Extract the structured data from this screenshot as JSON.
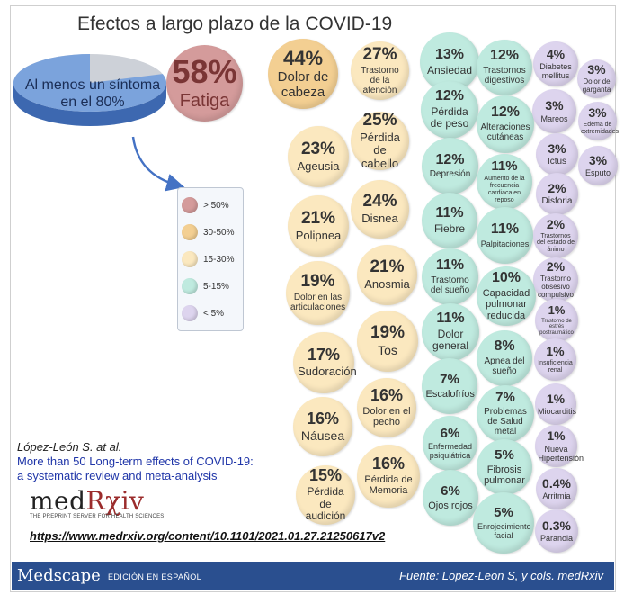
{
  "title": "Efectos a largo plazo de la COVID-19",
  "pie": {
    "label": "Al menos un síntoma en el 80%",
    "value": 80
  },
  "legend": [
    {
      "label": "> 50%",
      "color": "#d49b9b"
    },
    {
      "label": "30-50%",
      "color": "#f3cf92"
    },
    {
      "label": "15-30%",
      "color": "#fbe8bf"
    },
    {
      "label": "5-15%",
      "color": "#bfeadf"
    },
    {
      "label": "< 5%",
      "color": "#ddd4ee"
    }
  ],
  "chart_data": {
    "type": "bubble",
    "title": "Efectos a largo plazo de la COVID-19",
    "pie_value": 80,
    "bins": [
      {
        "label": "> 50%",
        "min": 50,
        "color": "#d49b9b"
      },
      {
        "label": "30-50%",
        "min": 30,
        "color": "#f3cf92"
      },
      {
        "label": "15-30%",
        "min": 15,
        "color": "#fbe8bf"
      },
      {
        "label": "5-15%",
        "min": 5,
        "color": "#bfeadf"
      },
      {
        "label": "< 5%",
        "min": 0,
        "color": "#ddd4ee"
      }
    ],
    "items": [
      {
        "label": "Fatiga",
        "value": 58
      },
      {
        "label": "Dolor de cabeza",
        "value": 44
      },
      {
        "label": "Trastorno de la atención",
        "value": 27
      },
      {
        "label": "Pérdida de cabello",
        "value": 25
      },
      {
        "label": "Disnea",
        "value": 24
      },
      {
        "label": "Ageusia",
        "value": 23
      },
      {
        "label": "Polipnea",
        "value": 21
      },
      {
        "label": "Anosmia",
        "value": 21
      },
      {
        "label": "Dolor en las articulaciones",
        "value": 19
      },
      {
        "label": "Tos",
        "value": 19
      },
      {
        "label": "Sudoración",
        "value": 17
      },
      {
        "label": "Dolor en el pecho",
        "value": 16
      },
      {
        "label": "Náusea",
        "value": 16
      },
      {
        "label": "Pérdida de Memoria",
        "value": 16
      },
      {
        "label": "Pérdida de audición",
        "value": 15
      },
      {
        "label": "Ansiedad",
        "value": 13
      },
      {
        "label": "Trastornos digestivos",
        "value": 12
      },
      {
        "label": "Pérdida de peso",
        "value": 12
      },
      {
        "label": "Alteraciones cutáneas",
        "value": 12
      },
      {
        "label": "Depresión",
        "value": 12
      },
      {
        "label": "Aumento de la frecuencia cardiaca en reposo",
        "value": 11
      },
      {
        "label": "Fiebre",
        "value": 11
      },
      {
        "label": "Palpitaciones",
        "value": 11
      },
      {
        "label": "Trastorno del sueño",
        "value": 11
      },
      {
        "label": "Dolor general",
        "value": 11
      },
      {
        "label": "Capacidad pulmonar reducida",
        "value": 10
      },
      {
        "label": "Apnea del sueño",
        "value": 8
      },
      {
        "label": "Escalofríos",
        "value": 7
      },
      {
        "label": "Problemas de Salud metal",
        "value": 7
      },
      {
        "label": "Enfermedad psiquiátrica",
        "value": 6
      },
      {
        "label": "Ojos rojos",
        "value": 6
      },
      {
        "label": "Fibrosis pulmonar",
        "value": 5
      },
      {
        "label": "Enrojecimiento facial",
        "value": 5
      },
      {
        "label": "Diabetes mellitus",
        "value": 4
      },
      {
        "label": "Mareos",
        "value": 3
      },
      {
        "label": "Ictus",
        "value": 3
      },
      {
        "label": "Dolor de garganta",
        "value": 3
      },
      {
        "label": "Edema de extremidades",
        "value": 3
      },
      {
        "label": "Esputo",
        "value": 3
      },
      {
        "label": "Disforia",
        "value": 2
      },
      {
        "label": "Trastornos del estado de ánimo",
        "value": 2
      },
      {
        "label": "Trastorno obsesivo compulsivo",
        "value": 2
      },
      {
        "label": "Trastorno de estrés postraumático",
        "value": 1
      },
      {
        "label": "Insuficiencia renal",
        "value": 1
      },
      {
        "label": "Miocarditis",
        "value": 1
      },
      {
        "label": "Nueva Hipertensión",
        "value": 1
      },
      {
        "label": "Arritmia",
        "value": 0.4
      },
      {
        "label": "Paranoia",
        "value": 0.3
      }
    ]
  },
  "citation": {
    "authors": "López-León S. at al.",
    "title_line1": "More than 50 Long-term effects of COVID-19:",
    "title_line2": "a systematic review and meta-analysis"
  },
  "logo": {
    "name_a": "med",
    "name_b": "Rχiv",
    "tagline": "THE PREPRINT SERVER FOR HEALTH SCIENCES"
  },
  "url": "https://www.medrxiv.org/content/10.1101/2021.01.27.21250617v2",
  "footer": {
    "brand": "Medscape",
    "edition": "EDICIÓN EN ESPAÑOL",
    "source": "Fuente: Lopez-Leon S, y cols. medRxiv"
  }
}
